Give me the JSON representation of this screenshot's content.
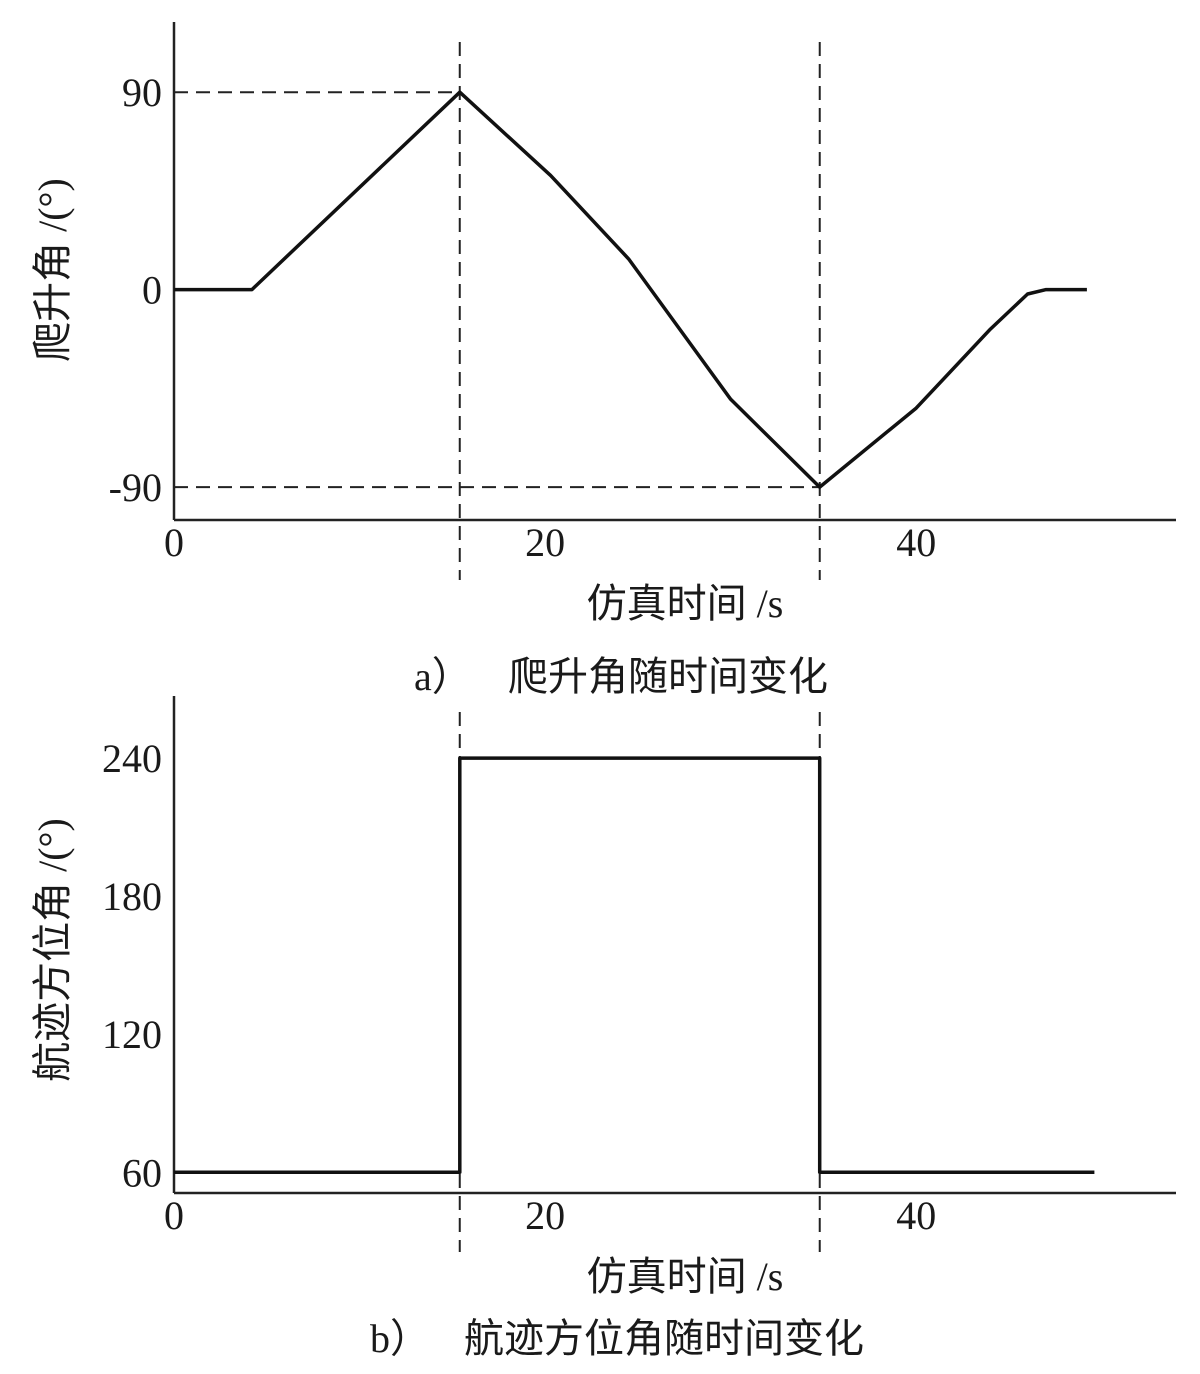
{
  "chart_data": [
    {
      "type": "line",
      "caption_label": "a）",
      "caption_text": "爬升角随时间变化",
      "xlabel": "仿真时间 /s",
      "ylabel": "爬升角 /(°)",
      "xlim": [
        0,
        54
      ],
      "ylim": [
        -105,
        122
      ],
      "xticks": [
        0,
        20,
        40
      ],
      "yticks": [
        90,
        0,
        -90
      ],
      "xtick_labels": [
        "0",
        "20",
        "40"
      ],
      "ytick_labels": [
        "90",
        "0",
        "-90"
      ],
      "grid": false,
      "reference_lines": {
        "x": [
          15.4,
          34.8
        ],
        "y": [
          90,
          -90
        ]
      },
      "series": [
        {
          "x": [
            0,
            4.2,
            15.4,
            20.3,
            24.5,
            30,
            34.8,
            40,
            44,
            46,
            47,
            49.2
          ],
          "y": [
            0,
            0,
            90,
            52,
            14,
            -50,
            -90,
            -54,
            -18,
            -2,
            0,
            0
          ]
        }
      ]
    },
    {
      "type": "line",
      "caption_label": "b）",
      "caption_text": "航迹方位角随时间变化",
      "xlabel": "仿真时间 /s",
      "ylabel": "航迹方位角 /(°)",
      "xlim": [
        0,
        54
      ],
      "ylim": [
        51,
        267
      ],
      "xticks": [
        0,
        20,
        40
      ],
      "yticks": [
        240,
        180,
        120,
        60
      ],
      "xtick_labels": [
        "0",
        "20",
        "40"
      ],
      "ytick_labels": [
        "240",
        "180",
        "120",
        "60"
      ],
      "grid": false,
      "reference_lines": {
        "x": [
          15.4,
          34.8
        ],
        "y": []
      },
      "series": [
        {
          "x": [
            0,
            15.4,
            15.4,
            34.8,
            34.8,
            49.6
          ],
          "y": [
            60,
            60,
            240,
            240,
            60,
            60
          ]
        }
      ]
    }
  ]
}
